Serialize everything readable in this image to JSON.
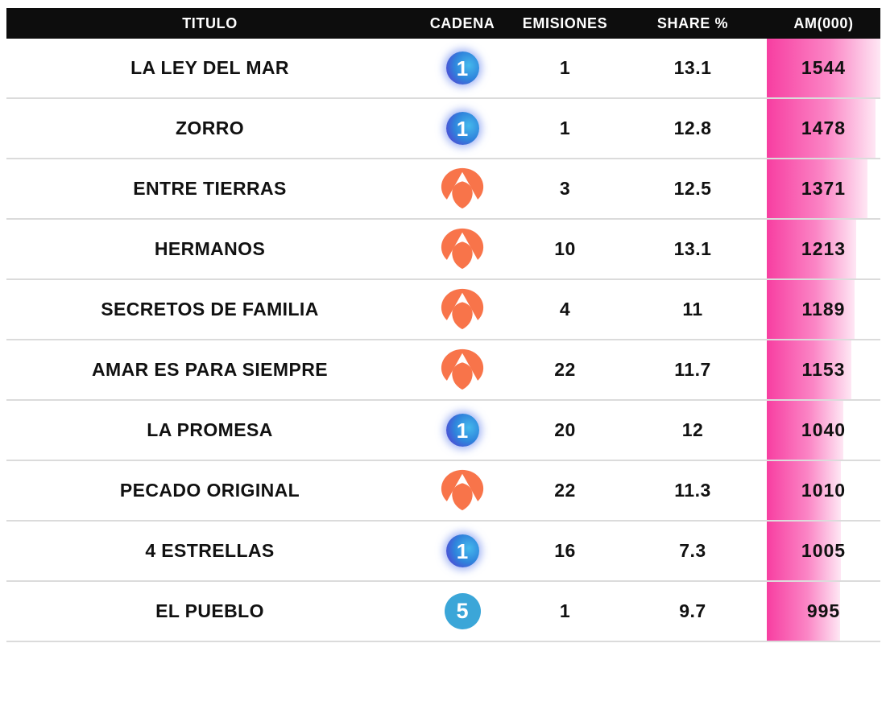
{
  "chart_data": {
    "type": "table",
    "title": "",
    "columns": [
      "TITULO",
      "CADENA",
      "EMISIONES",
      "SHARE %",
      "AM(000)"
    ],
    "rows": [
      {
        "titulo": "LA LEY DEL MAR",
        "cadena": "La 1",
        "cadena_key": "la1",
        "emisiones": 1,
        "share_pct": 13.1,
        "am_000": 1544
      },
      {
        "titulo": "ZORRO",
        "cadena": "La 1",
        "cadena_key": "la1",
        "emisiones": 1,
        "share_pct": 12.8,
        "am_000": 1478
      },
      {
        "titulo": "ENTRE TIERRAS",
        "cadena": "Antena 3",
        "cadena_key": "a3",
        "emisiones": 3,
        "share_pct": 12.5,
        "am_000": 1371
      },
      {
        "titulo": "HERMANOS",
        "cadena": "Antena 3",
        "cadena_key": "a3",
        "emisiones": 10,
        "share_pct": 13.1,
        "am_000": 1213
      },
      {
        "titulo": "SECRETOS DE FAMILIA",
        "cadena": "Antena 3",
        "cadena_key": "a3",
        "emisiones": 4,
        "share_pct": 11,
        "am_000": 1189
      },
      {
        "titulo": "AMAR ES PARA SIEMPRE",
        "cadena": "Antena 3",
        "cadena_key": "a3",
        "emisiones": 22,
        "share_pct": 11.7,
        "am_000": 1153
      },
      {
        "titulo": "LA PROMESA",
        "cadena": "La 1",
        "cadena_key": "la1",
        "emisiones": 20,
        "share_pct": 12,
        "am_000": 1040
      },
      {
        "titulo": "PECADO ORIGINAL",
        "cadena": "Antena 3",
        "cadena_key": "a3",
        "emisiones": 22,
        "share_pct": 11.3,
        "am_000": 1010
      },
      {
        "titulo": "4 ESTRELLAS",
        "cadena": "La 1",
        "cadena_key": "la1",
        "emisiones": 16,
        "share_pct": 7.3,
        "am_000": 1005
      },
      {
        "titulo": "EL PUEBLO",
        "cadena": "Telecinco",
        "cadena_key": "t5",
        "emisiones": 1,
        "share_pct": 9.7,
        "am_000": 995
      }
    ],
    "bar": {
      "column": "AM(000)",
      "max": 1544,
      "gradient": [
        "#f73ea1",
        "#fee7f4"
      ],
      "note": "bar width proportional to AM(000) value"
    },
    "legend_position": "none",
    "grid": "horizontal row separators only"
  },
  "channels": {
    "la1": {
      "name": "La 1",
      "glyph": "1",
      "color_left": "#5c30d0",
      "color_right": "#45b9ec"
    },
    "a3": {
      "name": "Antena 3",
      "glyph": "",
      "color": "#f8744a"
    },
    "t5": {
      "name": "Telecinco",
      "glyph": "5",
      "color": "#3ba6d8"
    }
  },
  "colors": {
    "header_bg": "#0d0d0d",
    "header_text": "#ffffff",
    "row_text": "#111111",
    "separator": "#dbdbdb",
    "bar_start": "#f73ea1",
    "bar_end": "#fee7f4"
  }
}
